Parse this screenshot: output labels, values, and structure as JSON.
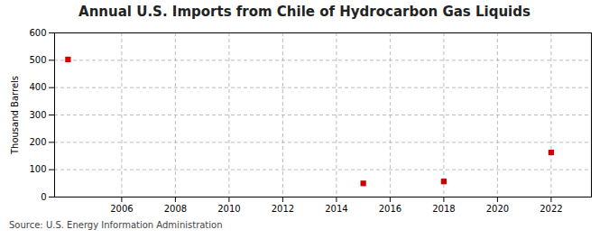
{
  "chart_data": {
    "type": "scatter",
    "title": "Annual U.S. Imports from Chile of Hydrocarbon Gas Liquids",
    "ylabel": "Thousand Barrels",
    "source": "Source: U.S. Energy Information Administration",
    "x": [
      2004,
      2015,
      2018,
      2022
    ],
    "values": [
      503,
      50,
      57,
      163
    ],
    "color": "#cc0000",
    "marker": "square",
    "xlim": [
      2003.5,
      2023.5
    ],
    "ylim": [
      0,
      600
    ],
    "xticks": [
      2006,
      2008,
      2010,
      2012,
      2014,
      2016,
      2018,
      2020,
      2022
    ],
    "yticks": [
      0,
      100,
      200,
      300,
      400,
      500,
      600
    ],
    "grid": true
  }
}
